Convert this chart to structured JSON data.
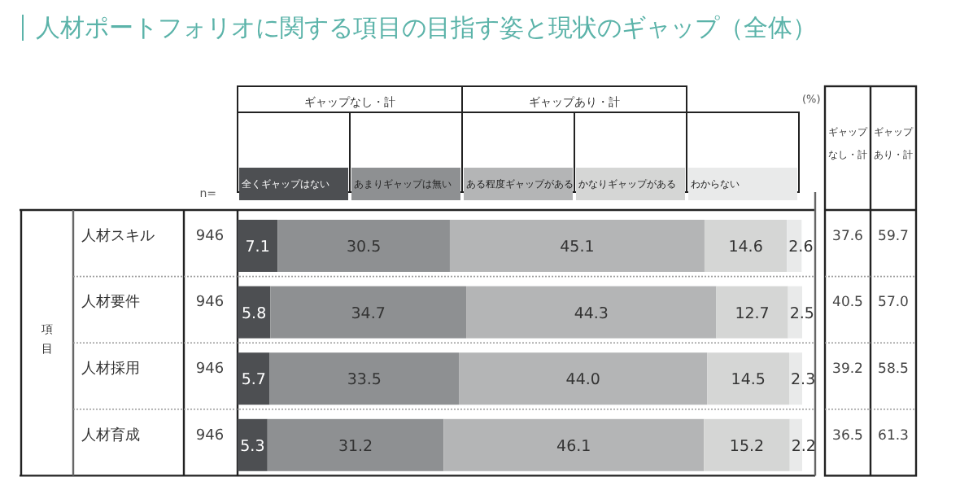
{
  "chart_data": {
    "type": "bar",
    "orientation": "horizontal",
    "stacked": true,
    "legend": "top",
    "title": "人材ポートフォリオに関する項目の目指す姿と現状のギャップ（全体）",
    "ylabel": "項目",
    "categories": [
      "人材スキル",
      "人材要件",
      "人材採用",
      "人材育成"
    ],
    "series": [
      {
        "name": "全くギャップはない",
        "color": "#4d4f52",
        "values": [
          7.1,
          5.8,
          5.7,
          5.3
        ],
        "value_labels": [
          "7.1",
          "5.8",
          "5.7",
          "5.3"
        ]
      },
      {
        "name": "あまりギャップは無い",
        "color": "#8e9092",
        "values": [
          30.5,
          34.7,
          33.5,
          31.2
        ],
        "value_labels": [
          "30.5",
          "34.7",
          "33.5",
          "31.2"
        ]
      },
      {
        "name": "ある程度ギャップがある",
        "color": "#b4b5b6",
        "values": [
          45.1,
          44.3,
          44.0,
          46.1
        ],
        "value_labels": [
          "45.1",
          "44.3",
          "44.0",
          "46.1"
        ]
      },
      {
        "name": "かなりギャップがある",
        "color": "#d5d6d5",
        "values": [
          14.6,
          12.7,
          14.5,
          15.2
        ],
        "value_labels": [
          "14.6",
          "12.7",
          "14.5",
          "15.2"
        ]
      },
      {
        "name": "わからない",
        "color": "#e9eaea",
        "values": [
          2.6,
          2.5,
          2.3,
          2.2
        ],
        "value_labels": [
          "2.6",
          "2.5",
          "2.3",
          "2.2"
        ]
      }
    ],
    "annotations": [
      "ギャップなし・計",
      "ギャップあり・計",
      "n=",
      "946",
      "946",
      "946",
      "946",
      "(%)",
      "ギャップなし・計",
      "ギャップあり・計",
      "37.6",
      "40.5",
      "39.2",
      "36.5",
      "59.7",
      "57.0",
      "58.5",
      "61.3"
    ]
  }
}
